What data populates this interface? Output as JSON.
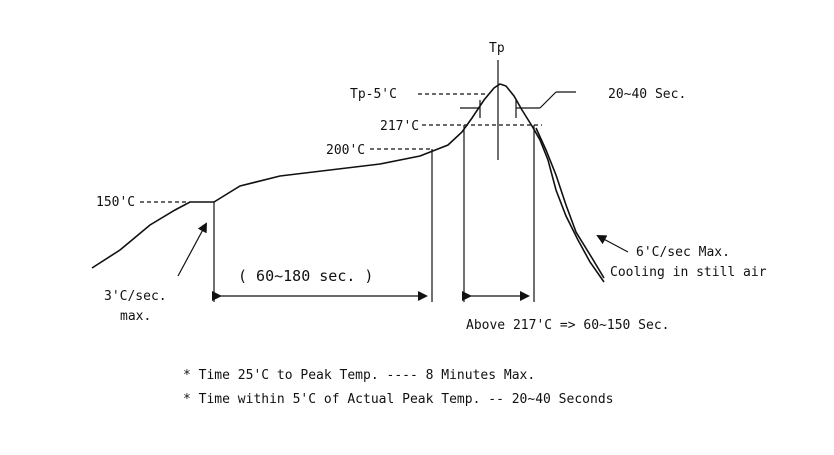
{
  "labels": {
    "tp": "Tp",
    "tp_minus_5": "Tp-5'C",
    "t217": "217'C",
    "t200": "200'C",
    "t150": "150'C",
    "ramp_up": "3'C/sec.",
    "ramp_up_max": "max.",
    "soak_time": "( 60~180 sec. )",
    "peak_time": "20~40 Sec.",
    "ramp_down": "6'C/sec Max.",
    "ramp_down_note": "Cooling in still air",
    "above_217": "Above 217'C => 60~150 Sec."
  },
  "notes": [
    "* Time 25'C to Peak Temp. ---- 8 Minutes Max.",
    "* Time within 5'C of Actual Peak Temp. -- 20~40 Seconds"
  ]
}
